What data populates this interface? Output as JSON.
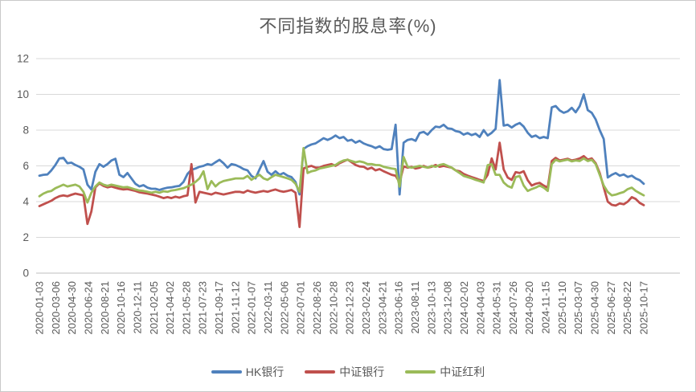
{
  "frame": {
    "background": "#FFFFFF",
    "border_color": "#C9C9C9"
  },
  "chart_data": {
    "type": "line",
    "title": "不同指数的股息率(%)",
    "xlabel": "",
    "ylabel": "",
    "ylim": [
      0,
      12
    ],
    "y_ticks": [
      "0",
      "2",
      "4",
      "6",
      "8",
      "10",
      "12"
    ],
    "grid": "horizontal",
    "legend_position": "bottom",
    "text_color": "#595959",
    "gridline_color": "#D9D9D9",
    "axis_color": "#BFBFBF",
    "x_tick_labels": [
      "2020-01-03",
      "2020-03-06",
      "2020-04-30",
      "2020-06-24",
      "2020-08-21",
      "2020-10-16",
      "2020-12-11",
      "2021-02-05",
      "2021-04-02",
      "2021-05-28",
      "2021-07-23",
      "2021-09-17",
      "2021-11-12",
      "2022-01-07",
      "2022-03-11",
      "2022-05-06",
      "2022-07-01",
      "2022-08-26",
      "2022-10-28",
      "2022-12-23",
      "2023-02-24",
      "2023-04-21",
      "2023-06-16",
      "2023-08-11",
      "2023-10-13",
      "2023-12-08",
      "2024-02-02",
      "2024-04-03",
      "2024-05-31",
      "2024-07-26",
      "2024-09-20",
      "2024-11-15",
      "2025-01-10",
      "2025-03-07",
      "2025-04-30",
      "2025-06-27",
      "2025-08-22",
      "2025-10-17"
    ],
    "series": [
      {
        "name": "HK银行",
        "color": "#4F81BD",
        "values": [
          5.45,
          5.5,
          5.52,
          5.75,
          6.05,
          6.42,
          6.45,
          6.15,
          6.18,
          6.05,
          5.95,
          5.8,
          4.95,
          4.68,
          5.67,
          6.1,
          5.95,
          6.1,
          6.3,
          6.4,
          5.5,
          5.37,
          5.6,
          5.3,
          5.0,
          4.85,
          4.92,
          4.78,
          4.72,
          4.72,
          4.65,
          4.73,
          4.78,
          4.8,
          4.85,
          4.88,
          5.1,
          5.55,
          5.78,
          5.85,
          5.95,
          6.0,
          6.1,
          6.05,
          6.2,
          6.34,
          6.15,
          5.9,
          6.1,
          6.05,
          5.95,
          5.82,
          5.75,
          5.44,
          5.3,
          5.8,
          6.27,
          5.67,
          5.5,
          5.7,
          5.5,
          5.6,
          5.45,
          5.37,
          5.1,
          4.4,
          6.95,
          7.1,
          7.2,
          7.26,
          7.4,
          7.55,
          7.45,
          7.55,
          7.7,
          7.55,
          7.62,
          7.4,
          7.46,
          7.3,
          7.4,
          7.26,
          7.17,
          7.1,
          7.0,
          7.1,
          6.94,
          6.9,
          6.94,
          8.3,
          4.4,
          7.3,
          7.45,
          7.5,
          7.4,
          7.84,
          7.9,
          7.75,
          8.0,
          8.2,
          8.16,
          8.3,
          8.1,
          8.07,
          7.95,
          7.9,
          7.75,
          7.84,
          7.72,
          7.8,
          7.62,
          8.0,
          7.7,
          7.85,
          8.07,
          10.8,
          8.25,
          8.3,
          8.15,
          8.3,
          8.4,
          8.2,
          7.85,
          7.62,
          7.7,
          7.55,
          7.62,
          7.55,
          9.27,
          9.35,
          9.1,
          8.97,
          9.05,
          9.25,
          9.0,
          9.34,
          10.0,
          9.12,
          8.97,
          8.6,
          8.0,
          7.5,
          5.35,
          5.5,
          5.6,
          5.45,
          5.52,
          5.38,
          5.45,
          5.3,
          5.2,
          5.0
        ]
      },
      {
        "name": "中证银行",
        "color": "#C0504D",
        "values": [
          3.75,
          3.85,
          3.95,
          4.05,
          4.2,
          4.3,
          4.35,
          4.3,
          4.38,
          4.45,
          4.4,
          4.35,
          2.75,
          3.45,
          4.8,
          5.02,
          4.88,
          4.8,
          4.85,
          4.78,
          4.72,
          4.68,
          4.7,
          4.65,
          4.6,
          4.52,
          4.48,
          4.45,
          4.4,
          4.35,
          4.28,
          4.2,
          4.25,
          4.2,
          4.28,
          4.22,
          4.3,
          4.35,
          6.1,
          3.95,
          4.55,
          4.5,
          4.45,
          4.4,
          4.5,
          4.45,
          4.4,
          4.45,
          4.5,
          4.55,
          4.55,
          4.5,
          4.62,
          4.55,
          4.5,
          4.55,
          4.6,
          4.55,
          4.62,
          4.68,
          4.6,
          4.55,
          4.6,
          4.65,
          4.5,
          2.58,
          5.85,
          5.95,
          6.0,
          5.9,
          5.9,
          6.0,
          6.05,
          6.1,
          6.0,
          6.15,
          6.25,
          6.35,
          6.2,
          6.05,
          5.97,
          5.95,
          5.82,
          5.9,
          5.75,
          5.82,
          5.7,
          5.6,
          5.5,
          5.45,
          5.07,
          5.97,
          5.9,
          5.95,
          5.85,
          5.9,
          6.0,
          5.9,
          5.95,
          6.05,
          5.95,
          6.0,
          5.95,
          5.9,
          5.75,
          5.7,
          5.55,
          5.45,
          5.37,
          5.3,
          5.22,
          5.15,
          5.5,
          6.42,
          5.8,
          7.3,
          5.8,
          5.35,
          5.22,
          5.65,
          5.6,
          5.7,
          5.2,
          4.9,
          5.0,
          5.05,
          4.9,
          4.78,
          6.27,
          6.45,
          6.3,
          6.35,
          6.4,
          6.3,
          6.35,
          6.42,
          6.55,
          6.35,
          6.42,
          6.15,
          5.6,
          4.8,
          4.0,
          3.82,
          3.78,
          3.9,
          3.85,
          4.0,
          4.25,
          4.15,
          3.93,
          3.8
        ]
      },
      {
        "name": "中证红利",
        "color": "#9BBB59",
        "values": [
          4.3,
          4.45,
          4.55,
          4.6,
          4.75,
          4.85,
          4.95,
          4.85,
          4.9,
          4.95,
          4.85,
          4.55,
          3.95,
          4.5,
          4.85,
          5.07,
          4.95,
          4.88,
          4.95,
          4.9,
          4.85,
          4.8,
          4.82,
          4.75,
          4.68,
          4.62,
          4.6,
          4.55,
          4.5,
          4.55,
          4.5,
          4.58,
          4.55,
          4.62,
          4.65,
          4.7,
          4.75,
          4.85,
          4.95,
          5.1,
          5.3,
          5.7,
          4.7,
          5.15,
          4.85,
          5.05,
          5.15,
          5.2,
          5.25,
          5.3,
          5.3,
          5.3,
          5.44,
          5.22,
          5.37,
          5.5,
          5.3,
          5.22,
          5.37,
          5.5,
          5.44,
          5.37,
          5.3,
          5.22,
          5.0,
          4.55,
          7.0,
          5.6,
          5.7,
          5.75,
          5.85,
          5.9,
          5.95,
          6.0,
          6.05,
          6.2,
          6.3,
          6.34,
          6.27,
          6.2,
          6.25,
          6.2,
          6.1,
          6.1,
          6.05,
          6.04,
          5.95,
          5.9,
          5.85,
          5.82,
          4.84,
          6.5,
          5.95,
          5.9,
          5.95,
          6.0,
          5.95,
          5.9,
          6.0,
          5.95,
          6.05,
          6.1,
          6.0,
          5.9,
          5.75,
          5.6,
          5.44,
          5.37,
          5.3,
          5.22,
          5.15,
          5.07,
          6.04,
          6.1,
          5.5,
          5.5,
          5.07,
          4.87,
          4.78,
          5.37,
          5.44,
          4.9,
          4.6,
          4.7,
          4.78,
          4.9,
          4.78,
          4.6,
          6.1,
          6.34,
          6.25,
          6.3,
          6.35,
          6.25,
          6.3,
          6.27,
          6.42,
          6.27,
          6.34,
          6.1,
          5.5,
          4.9,
          4.54,
          4.35,
          4.39,
          4.47,
          4.54,
          4.7,
          4.78,
          4.6,
          4.47,
          4.35
        ]
      }
    ]
  }
}
